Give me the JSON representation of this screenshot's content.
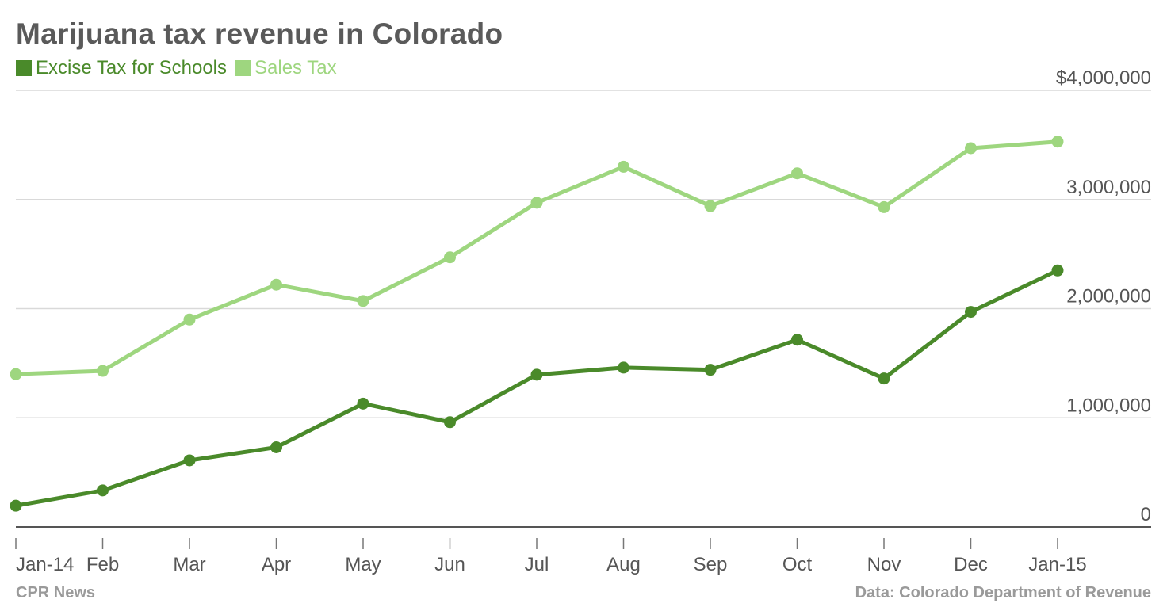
{
  "title": "Marijuana tax revenue in Colorado",
  "footer": {
    "source_left": "CPR News",
    "source_right": "Data: Colorado Department of Revenue"
  },
  "colors": {
    "excise": "#4a8a2a",
    "sales": "#9ed67f",
    "grid": "#d9d9d9",
    "axis": "#555555",
    "text": "#555555"
  },
  "chart_data": {
    "type": "line",
    "title": "Marijuana tax revenue in Colorado",
    "xlabel": "",
    "ylabel": "",
    "categories": [
      "Jan-14",
      "Feb",
      "Mar",
      "Apr",
      "May",
      "Jun",
      "Jul",
      "Aug",
      "Sep",
      "Oct",
      "Nov",
      "Dec",
      "Jan-15"
    ],
    "ylim": [
      0,
      4000000
    ],
    "yticks": [
      0,
      1000000,
      2000000,
      3000000,
      4000000
    ],
    "ytick_labels": [
      "0",
      "1,000,000",
      "2,000,000",
      "3,000,000",
      "$4,000,000"
    ],
    "grid": true,
    "legend_position": "top-left",
    "series": [
      {
        "name": "Excise Tax for Schools",
        "color": "#4a8a2a",
        "values": [
          195000,
          335000,
          610000,
          730000,
          1130000,
          960000,
          1395000,
          1460000,
          1440000,
          1715000,
          1360000,
          1970000,
          2350000
        ]
      },
      {
        "name": "Sales Tax",
        "color": "#9ed67f",
        "values": [
          1400000,
          1430000,
          1900000,
          2220000,
          2070000,
          2470000,
          2970000,
          3300000,
          2940000,
          3240000,
          2930000,
          3470000,
          3530000
        ]
      }
    ]
  }
}
